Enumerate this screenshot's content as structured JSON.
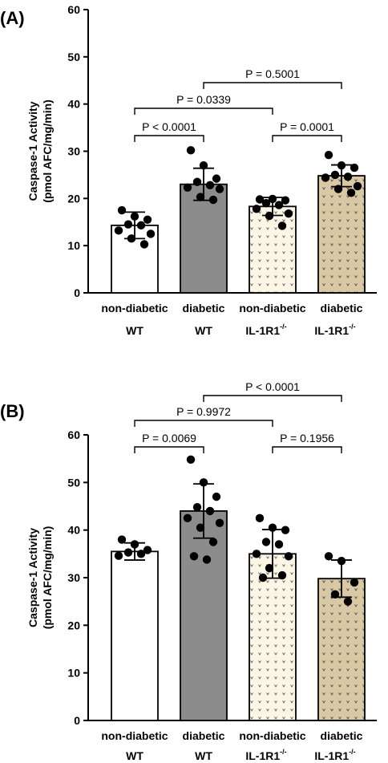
{
  "chart_data": [
    {
      "panel": "(A)",
      "type": "bar",
      "ylabel_line1": "Caspase-1 Activity",
      "ylabel_line2": "(pmol AFC/mg/min)",
      "ylim": [
        0,
        60
      ],
      "yticks": [
        "0",
        "10",
        "20",
        "30",
        "40",
        "50",
        "60"
      ],
      "categories": [
        {
          "line1": "non-diabetic",
          "line2": "WT",
          "sup": ""
        },
        {
          "line1": "diabetic",
          "line2": "WT",
          "sup": ""
        },
        {
          "line1": "non-diabetic",
          "line2": "IL-1R1",
          "sup": "-/-"
        },
        {
          "line1": "diabetic",
          "line2": "IL-1R1",
          "sup": "-/-"
        }
      ],
      "means": [
        14.3,
        23.0,
        18.3,
        24.8
      ],
      "sd": [
        2.8,
        3.4,
        1.9,
        2.3
      ],
      "points": [
        [
          17.5,
          16.2,
          15.5,
          14.5,
          14.3,
          13.2,
          12.5,
          11.5,
          10.3
        ],
        [
          30.2,
          27.0,
          24.2,
          23.5,
          22.8,
          22.3,
          22.0,
          20.3,
          19.7
        ],
        [
          19.8,
          19.9,
          19.6,
          19.0,
          18.6,
          17.8,
          16.8,
          16.3,
          14.2
        ],
        [
          29.2,
          27.0,
          26.5,
          25.0,
          24.6,
          24.4,
          22.6,
          22.0,
          21.2
        ]
      ],
      "comparisons": [
        {
          "from": 0,
          "to": 1,
          "label": "P < 0.0001"
        },
        {
          "from": 2,
          "to": 3,
          "label": "P = 0.0001"
        },
        {
          "from": 0,
          "to": 2,
          "label": "P = 0.0339"
        },
        {
          "from": 1,
          "to": 3,
          "label": "P = 0.5001"
        }
      ]
    },
    {
      "panel": "(B)",
      "type": "bar",
      "ylabel_line1": "Caspase-1 Activity",
      "ylabel_line2": "(pmol AFC/mg/min)",
      "ylim": [
        0,
        60
      ],
      "yticks": [
        "0",
        "10",
        "20",
        "30",
        "40",
        "50",
        "60"
      ],
      "categories": [
        {
          "line1": "non-diabetic",
          "line2": "WT",
          "sup": ""
        },
        {
          "line1": "diabetic",
          "line2": "WT",
          "sup": ""
        },
        {
          "line1": "non-diabetic",
          "line2": "IL-1R1",
          "sup": "-/-"
        },
        {
          "line1": "diabetic",
          "line2": "IL-1R1",
          "sup": "-/-"
        }
      ],
      "means": [
        35.5,
        44.0,
        35.0,
        29.8
      ],
      "sd": [
        1.8,
        5.7,
        5.1,
        3.9
      ],
      "points": [
        [
          38.0,
          37.0,
          35.8,
          35.3,
          35.0,
          34.6
        ],
        [
          54.8,
          50.0,
          47.0,
          44.8,
          44.0,
          42.5,
          41.5,
          40.5,
          37.5,
          34.5,
          33.8
        ],
        [
          42.5,
          40.5,
          40.0,
          37.5,
          37.0,
          35.0,
          34.5,
          32.0,
          30.5,
          30.0
        ],
        [
          34.5,
          33.5,
          29.0,
          26.5,
          25.0
        ]
      ],
      "comparisons": [
        {
          "from": 0,
          "to": 1,
          "label": "P = 0.0069"
        },
        {
          "from": 2,
          "to": 3,
          "label": "P = 0.1956"
        },
        {
          "from": 0,
          "to": 2,
          "label": "P = 0.9972"
        },
        {
          "from": 1,
          "to": 3,
          "label": "P < 0.0001"
        }
      ]
    }
  ],
  "colors": {
    "bar_fills": [
      "#ffffff",
      "#8c8c8c",
      "#fbf6e6",
      "#d8c8a4"
    ],
    "pattern_mark": "#555555",
    "line": "#000000"
  }
}
